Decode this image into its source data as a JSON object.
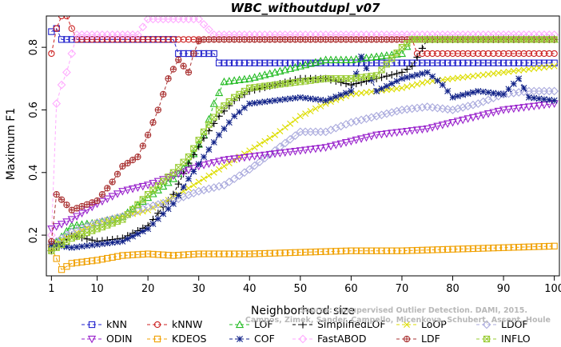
{
  "chart_data": {
    "type": "line",
    "title": "WBC_withoutdupl_v07",
    "xlabel": "Neighborhood size",
    "ylabel": "Maximum F1",
    "xlim": [
      0,
      101
    ],
    "ylim": [
      0.07,
      0.9
    ],
    "xticks": [
      1,
      10,
      20,
      30,
      40,
      50,
      60,
      70,
      80,
      90,
      100
    ],
    "yticks": [
      0.2,
      0.4,
      0.6,
      0.8
    ],
    "grid": false,
    "legend_position": "bottom",
    "watermark": [
      "Source: Unsupervised Outlier Detection. DAMI, 2015.",
      "Campos, Zimek, Sander, Campello, Micenkova, Schubert, Assent, Houle"
    ],
    "series": [
      {
        "name": "kNN",
        "color": "#2222cc",
        "marker": "square",
        "points": [
          [
            1,
            0.85
          ],
          [
            2,
            0.86
          ],
          [
            3,
            0.825
          ],
          [
            10,
            0.825
          ],
          [
            20,
            0.825
          ],
          [
            25,
            0.825
          ],
          [
            26,
            0.78
          ],
          [
            30,
            0.78
          ],
          [
            33,
            0.78
          ],
          [
            34,
            0.75
          ],
          [
            50,
            0.75
          ],
          [
            70,
            0.75
          ],
          [
            100,
            0.75
          ]
        ]
      },
      {
        "name": "kNNW",
        "color": "#cc2222",
        "marker": "circle",
        "points": [
          [
            1,
            0.78
          ],
          [
            2,
            0.86
          ],
          [
            3,
            0.9
          ],
          [
            4,
            0.9
          ],
          [
            5,
            0.86
          ],
          [
            6,
            0.825
          ],
          [
            10,
            0.825
          ],
          [
            40,
            0.825
          ],
          [
            72,
            0.825
          ],
          [
            73,
            0.78
          ],
          [
            100,
            0.78
          ]
        ]
      },
      {
        "name": "LOF",
        "color": "#22bb22",
        "marker": "triangle",
        "points": [
          [
            1,
            0.16
          ],
          [
            5,
            0.23
          ],
          [
            10,
            0.24
          ],
          [
            15,
            0.26
          ],
          [
            20,
            0.32
          ],
          [
            25,
            0.38
          ],
          [
            28,
            0.43
          ],
          [
            31,
            0.52
          ],
          [
            33,
            0.62
          ],
          [
            35,
            0.69
          ],
          [
            40,
            0.7
          ],
          [
            45,
            0.72
          ],
          [
            50,
            0.74
          ],
          [
            55,
            0.76
          ],
          [
            60,
            0.76
          ],
          [
            70,
            0.78
          ],
          [
            72,
            0.825
          ],
          [
            100,
            0.825
          ]
        ]
      },
      {
        "name": "SimplifiedLOF",
        "color": "#000000",
        "marker": "plus",
        "points": [
          [
            1,
            0.15
          ],
          [
            5,
            0.2
          ],
          [
            10,
            0.18
          ],
          [
            15,
            0.19
          ],
          [
            20,
            0.23
          ],
          [
            25,
            0.33
          ],
          [
            28,
            0.43
          ],
          [
            31,
            0.51
          ],
          [
            34,
            0.58
          ],
          [
            37,
            0.63
          ],
          [
            40,
            0.66
          ],
          [
            45,
            0.68
          ],
          [
            50,
            0.7
          ],
          [
            55,
            0.7
          ],
          [
            60,
            0.68
          ],
          [
            65,
            0.7
          ],
          [
            70,
            0.72
          ],
          [
            72,
            0.74
          ],
          [
            75,
            0.825
          ],
          [
            100,
            0.825
          ]
        ]
      },
      {
        "name": "LoOP",
        "color": "#dddd00",
        "marker": "x",
        "points": [
          [
            1,
            0.17
          ],
          [
            5,
            0.2
          ],
          [
            10,
            0.24
          ],
          [
            15,
            0.26
          ],
          [
            20,
            0.28
          ],
          [
            25,
            0.32
          ],
          [
            30,
            0.37
          ],
          [
            35,
            0.42
          ],
          [
            40,
            0.47
          ],
          [
            45,
            0.52
          ],
          [
            50,
            0.58
          ],
          [
            55,
            0.62
          ],
          [
            60,
            0.65
          ],
          [
            65,
            0.66
          ],
          [
            70,
            0.67
          ],
          [
            75,
            0.69
          ],
          [
            80,
            0.7
          ],
          [
            85,
            0.71
          ],
          [
            90,
            0.72
          ],
          [
            95,
            0.73
          ],
          [
            100,
            0.74
          ]
        ]
      },
      {
        "name": "LDOF",
        "color": "#aaaadd",
        "marker": "diamond",
        "points": [
          [
            1,
            0.17
          ],
          [
            5,
            0.21
          ],
          [
            10,
            0.24
          ],
          [
            15,
            0.26
          ],
          [
            20,
            0.29
          ],
          [
            25,
            0.31
          ],
          [
            30,
            0.34
          ],
          [
            35,
            0.36
          ],
          [
            40,
            0.41
          ],
          [
            45,
            0.47
          ],
          [
            50,
            0.53
          ],
          [
            55,
            0.53
          ],
          [
            60,
            0.56
          ],
          [
            65,
            0.58
          ],
          [
            70,
            0.6
          ],
          [
            75,
            0.61
          ],
          [
            80,
            0.6
          ],
          [
            85,
            0.62
          ],
          [
            90,
            0.65
          ],
          [
            95,
            0.66
          ],
          [
            100,
            0.66
          ]
        ]
      },
      {
        "name": "ODIN",
        "color": "#9922cc",
        "marker": "triangle-down",
        "points": [
          [
            1,
            0.22
          ],
          [
            5,
            0.25
          ],
          [
            10,
            0.3
          ],
          [
            15,
            0.34
          ],
          [
            20,
            0.36
          ],
          [
            25,
            0.39
          ],
          [
            30,
            0.42
          ],
          [
            35,
            0.44
          ],
          [
            40,
            0.45
          ],
          [
            45,
            0.46
          ],
          [
            50,
            0.47
          ],
          [
            55,
            0.48
          ],
          [
            60,
            0.5
          ],
          [
            65,
            0.52
          ],
          [
            70,
            0.53
          ],
          [
            75,
            0.54
          ],
          [
            80,
            0.56
          ],
          [
            85,
            0.58
          ],
          [
            90,
            0.6
          ],
          [
            95,
            0.61
          ],
          [
            100,
            0.62
          ]
        ]
      },
      {
        "name": "KDEOS",
        "color": "#f0a000",
        "marker": "square",
        "points": [
          [
            1,
            0.16
          ],
          [
            3,
            0.09
          ],
          [
            5,
            0.11
          ],
          [
            10,
            0.12
          ],
          [
            15,
            0.135
          ],
          [
            20,
            0.14
          ],
          [
            25,
            0.135
          ],
          [
            30,
            0.14
          ],
          [
            40,
            0.14
          ],
          [
            50,
            0.145
          ],
          [
            60,
            0.15
          ],
          [
            70,
            0.15
          ],
          [
            80,
            0.155
          ],
          [
            90,
            0.16
          ],
          [
            100,
            0.165
          ]
        ]
      },
      {
        "name": "COF",
        "color": "#112288",
        "marker": "star",
        "points": [
          [
            1,
            0.17
          ],
          [
            5,
            0.16
          ],
          [
            10,
            0.17
          ],
          [
            15,
            0.18
          ],
          [
            20,
            0.22
          ],
          [
            25,
            0.3
          ],
          [
            28,
            0.38
          ],
          [
            31,
            0.45
          ],
          [
            34,
            0.52
          ],
          [
            37,
            0.58
          ],
          [
            40,
            0.62
          ],
          [
            45,
            0.63
          ],
          [
            50,
            0.64
          ],
          [
            55,
            0.63
          ],
          [
            60,
            0.66
          ],
          [
            62,
            0.77
          ],
          [
            65,
            0.66
          ],
          [
            70,
            0.7
          ],
          [
            75,
            0.72
          ],
          [
            78,
            0.68
          ],
          [
            80,
            0.64
          ],
          [
            85,
            0.66
          ],
          [
            90,
            0.65
          ],
          [
            93,
            0.7
          ],
          [
            95,
            0.64
          ],
          [
            100,
            0.63
          ]
        ]
      },
      {
        "name": "FastABOD",
        "color": "#ffaaff",
        "marker": "diamond",
        "points": [
          [
            1,
            0.2
          ],
          [
            2,
            0.62
          ],
          [
            3,
            0.68
          ],
          [
            4,
            0.72
          ],
          [
            5,
            0.78
          ],
          [
            6,
            0.84
          ],
          [
            10,
            0.84
          ],
          [
            18,
            0.84
          ],
          [
            20,
            0.89
          ],
          [
            25,
            0.89
          ],
          [
            30,
            0.89
          ],
          [
            33,
            0.84
          ],
          [
            50,
            0.84
          ],
          [
            70,
            0.84
          ],
          [
            100,
            0.84
          ]
        ]
      },
      {
        "name": "LDF",
        "color": "#aa3333",
        "marker": "circle-plus",
        "points": [
          [
            1,
            0.18
          ],
          [
            2,
            0.33
          ],
          [
            5,
            0.28
          ],
          [
            10,
            0.31
          ],
          [
            13,
            0.37
          ],
          [
            15,
            0.42
          ],
          [
            18,
            0.45
          ],
          [
            20,
            0.52
          ],
          [
            22,
            0.6
          ],
          [
            24,
            0.7
          ],
          [
            26,
            0.76
          ],
          [
            28,
            0.72
          ],
          [
            29,
            0.78
          ],
          [
            30,
            0.82
          ],
          [
            31,
            0.825
          ],
          [
            50,
            0.825
          ],
          [
            100,
            0.825
          ]
        ]
      },
      {
        "name": "INFLO",
        "color": "#99cc33",
        "marker": "square-x",
        "points": [
          [
            1,
            0.15
          ],
          [
            5,
            0.19
          ],
          [
            10,
            0.22
          ],
          [
            15,
            0.25
          ],
          [
            20,
            0.33
          ],
          [
            25,
            0.4
          ],
          [
            28,
            0.45
          ],
          [
            31,
            0.53
          ],
          [
            34,
            0.6
          ],
          [
            37,
            0.64
          ],
          [
            40,
            0.67
          ],
          [
            45,
            0.68
          ],
          [
            50,
            0.69
          ],
          [
            55,
            0.7
          ],
          [
            60,
            0.7
          ],
          [
            65,
            0.71
          ],
          [
            70,
            0.8
          ],
          [
            72,
            0.825
          ],
          [
            100,
            0.825
          ]
        ]
      }
    ]
  }
}
